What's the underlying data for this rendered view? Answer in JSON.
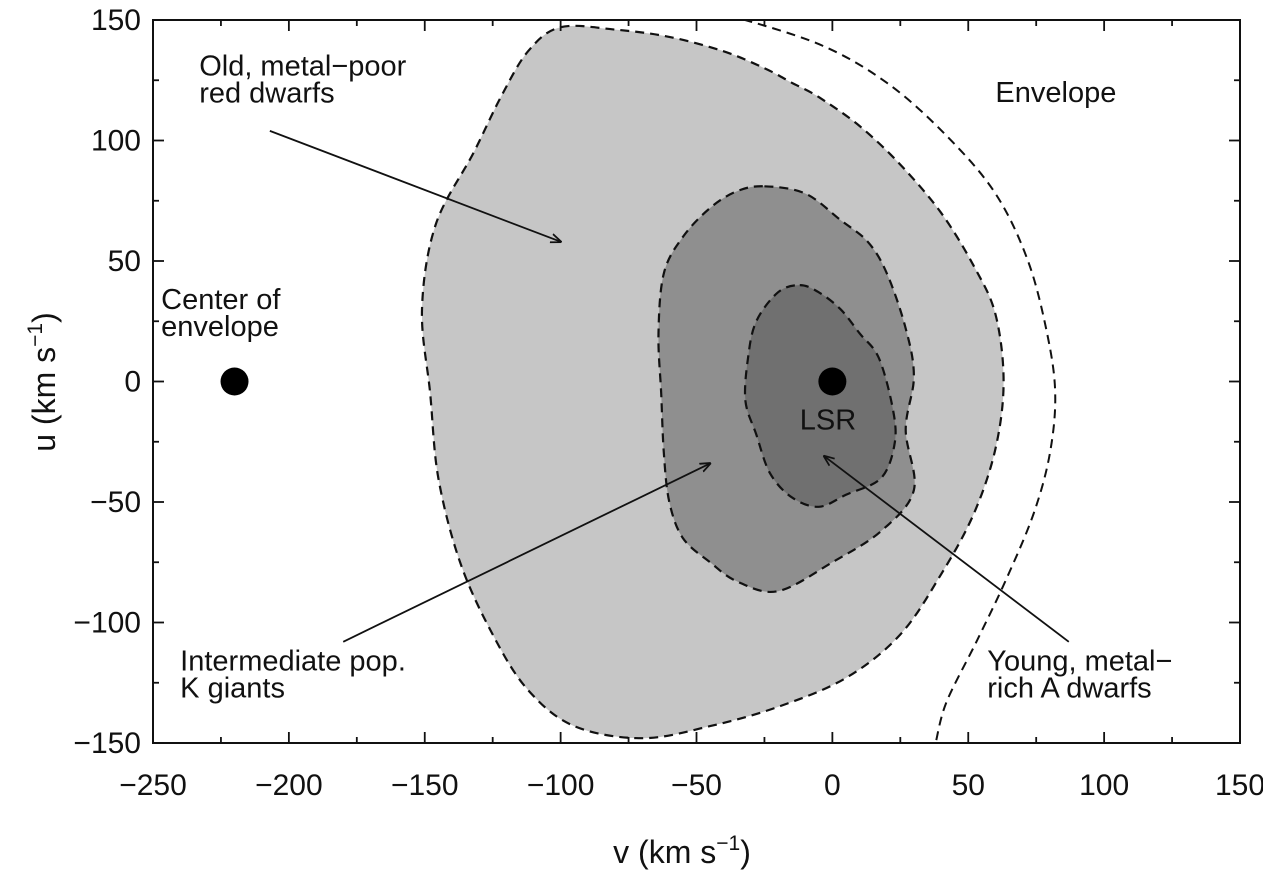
{
  "chart_data": {
    "type": "scatter",
    "title": "",
    "xlabel": {
      "text": "v (km s",
      "sup": "−1",
      "close": ")"
    },
    "ylabel": {
      "text": "u (km s",
      "sup": "−1",
      "close": ")"
    },
    "xlim": [
      -250,
      150
    ],
    "ylim": [
      -150,
      150
    ],
    "xticks": [
      -250,
      -200,
      -150,
      -100,
      -50,
      0,
      50,
      100,
      150
    ],
    "yticks": [
      -150,
      -100,
      -50,
      0,
      50,
      100,
      150
    ],
    "xtick_labels": [
      "−250",
      "−200",
      "−150",
      "−100",
      "−50",
      "0",
      "50",
      "100",
      "150"
    ],
    "ytick_labels": [
      "−150",
      "−100",
      "−50",
      "0",
      "50",
      "100",
      "150"
    ],
    "grid": false,
    "colors": {
      "outer_region": "#c6c6c6",
      "middle_region": "#8f8f8f",
      "inner_region": "#707070",
      "outline": "#111111"
    },
    "regions": [
      {
        "id": "old-metal-poor-red-dwarfs",
        "fill": "#c6c6c6",
        "points": [
          [
            -100,
            147
          ],
          [
            -80,
            146
          ],
          [
            -60,
            143
          ],
          [
            -40,
            137
          ],
          [
            -25,
            130
          ],
          [
            -15,
            124
          ],
          [
            -5,
            118
          ],
          [
            10,
            106
          ],
          [
            25,
            90
          ],
          [
            40,
            70
          ],
          [
            52,
            48
          ],
          [
            60,
            28
          ],
          [
            63,
            0
          ],
          [
            60,
            -28
          ],
          [
            52,
            -55
          ],
          [
            40,
            -80
          ],
          [
            25,
            -105
          ],
          [
            5,
            -123
          ],
          [
            -20,
            -135
          ],
          [
            -45,
            -143
          ],
          [
            -70,
            -148
          ],
          [
            -95,
            -143
          ],
          [
            -112,
            -128
          ],
          [
            -125,
            -105
          ],
          [
            -137,
            -75
          ],
          [
            -145,
            -40
          ],
          [
            -148,
            -5
          ],
          [
            -151,
            30
          ],
          [
            -146,
            65
          ],
          [
            -132,
            95
          ],
          [
            -122,
            118
          ],
          [
            -112,
            137
          ]
        ]
      },
      {
        "id": "intermediate-pop-k-giants",
        "fill": "#8f8f8f",
        "points": [
          [
            -25,
            81
          ],
          [
            -10,
            78
          ],
          [
            3,
            67
          ],
          [
            13,
            58
          ],
          [
            20,
            45
          ],
          [
            27,
            22
          ],
          [
            30,
            2
          ],
          [
            27,
            -20
          ],
          [
            30,
            -45
          ],
          [
            18,
            -62
          ],
          [
            0,
            -75
          ],
          [
            -20,
            -87
          ],
          [
            -35,
            -83
          ],
          [
            -45,
            -75
          ],
          [
            -55,
            -65
          ],
          [
            -60,
            -50
          ],
          [
            -62,
            -30
          ],
          [
            -63,
            -5
          ],
          [
            -64,
            20
          ],
          [
            -62,
            45
          ],
          [
            -55,
            60
          ],
          [
            -45,
            72
          ],
          [
            -35,
            79
          ]
        ]
      },
      {
        "id": "young-metal-rich-a-dwarfs",
        "fill": "#707070",
        "points": [
          [
            -12,
            40
          ],
          [
            -5,
            37
          ],
          [
            3,
            30
          ],
          [
            10,
            20
          ],
          [
            17,
            10
          ],
          [
            22,
            -10
          ],
          [
            23,
            -25
          ],
          [
            18,
            -40
          ],
          [
            5,
            -47
          ],
          [
            -5,
            -52
          ],
          [
            -15,
            -48
          ],
          [
            -23,
            -38
          ],
          [
            -28,
            -22
          ],
          [
            -32,
            -8
          ],
          [
            -31,
            10
          ],
          [
            -28,
            25
          ],
          [
            -20,
            37
          ]
        ]
      }
    ],
    "envelope_curve": {
      "id": "envelope",
      "points": [
        [
          -38,
          152
        ],
        [
          -5,
          140
        ],
        [
          20,
          124
        ],
        [
          42,
          102
        ],
        [
          60,
          78
        ],
        [
          72,
          50
        ],
        [
          79,
          20
        ],
        [
          82,
          -5
        ],
        [
          80,
          -30
        ],
        [
          74,
          -55
        ],
        [
          64,
          -82
        ],
        [
          53,
          -108
        ],
        [
          42,
          -133
        ],
        [
          38,
          -150
        ]
      ]
    },
    "points": [
      {
        "id": "center-of-envelope",
        "x": -220,
        "y": 0
      },
      {
        "id": "lsr",
        "x": 0,
        "y": 0
      }
    ],
    "annotations": [
      {
        "id": "old-metal-poor-red-dwarfs",
        "lines": [
          "Old, metal−poor",
          "red dwarfs"
        ],
        "x": -233,
        "y": 127,
        "arrow_from": [
          -207,
          104
        ],
        "arrow_to": [
          -100,
          58
        ]
      },
      {
        "id": "envelope",
        "lines": [
          "Envelope"
        ],
        "x": 60,
        "y": 116
      },
      {
        "id": "center-of-envelope",
        "lines": [
          "Center of",
          "envelope"
        ],
        "x": -247,
        "y": 30
      },
      {
        "id": "lsr",
        "lines": [
          "LSR"
        ],
        "x": -12,
        "y": -20
      },
      {
        "id": "intermediate-pop-k-giants",
        "lines": [
          "Intermediate pop.",
          "K giants"
        ],
        "x": -240,
        "y": -120,
        "arrow_from": [
          -180,
          -108
        ],
        "arrow_to": [
          -45,
          -34
        ]
      },
      {
        "id": "young-metal-rich-a-dwarfs",
        "lines": [
          "Young, metal−",
          "rich A dwarfs"
        ],
        "x": 57,
        "y": -120,
        "arrow_from": [
          87,
          -108
        ],
        "arrow_to": [
          -3,
          -31
        ]
      }
    ]
  }
}
